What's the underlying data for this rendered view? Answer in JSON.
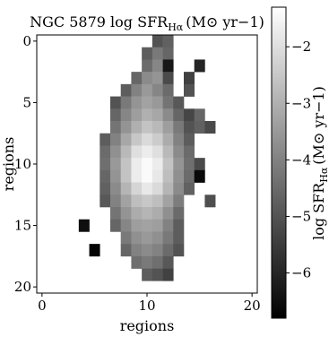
{
  "chart_data": {
    "type": "heatmap",
    "title": "NGC 5879 log SFR",
    "title_subscript": "Hα",
    "title_unit": "(M⊙ yr−1)",
    "xlabel": "regions",
    "ylabel": "regions",
    "colorbar_label": "log SFR",
    "colorbar_subscript": "Hα",
    "colorbar_unit": "(M⊙ yr−1)",
    "xlim": [
      -0.5,
      20.5
    ],
    "ylim": [
      20.5,
      -0.5
    ],
    "x_ticks": [
      0,
      10,
      20
    ],
    "y_ticks": [
      0,
      5,
      10,
      15,
      20
    ],
    "x_tick_labels": [
      "0",
      "10",
      "20"
    ],
    "y_tick_labels": [
      "0",
      "5",
      "10",
      "15",
      "20"
    ],
    "colorbar_range": [
      -6.8,
      -1.3
    ],
    "colorbar_ticks": [
      -2,
      -3,
      -4,
      -5,
      -6
    ],
    "colorbar_tick_labels": [
      "−2",
      "−3",
      "−4",
      "−5",
      "−6"
    ],
    "colormap": "gray",
    "grid": false,
    "rows": [
      {
        "y": 0,
        "x0": 11,
        "values": [
          -5.0,
          -4.7
        ]
      },
      {
        "y": 1,
        "x0": 10,
        "values": [
          -4.8,
          -4.2,
          -4.6
        ]
      },
      {
        "y": 2,
        "x0": 10,
        "values": [
          -4.5,
          -3.9,
          -6.3
        ]
      },
      {
        "y": 2,
        "x0": 15,
        "values": [
          -6.0
        ]
      },
      {
        "y": 3,
        "x0": 9,
        "values": [
          -4.6,
          -3.8,
          -3.6,
          -5.2
        ]
      },
      {
        "y": 3,
        "x0": 14,
        "values": [
          -5.4
        ]
      },
      {
        "y": 4,
        "x0": 8,
        "values": [
          -4.8,
          -4.0,
          -3.5,
          -3.9,
          -4.5
        ]
      },
      {
        "y": 4,
        "x0": 14,
        "values": [
          -5.0
        ]
      },
      {
        "y": 5,
        "x0": 7,
        "values": [
          -5.0,
          -4.2,
          -3.6,
          -3.3,
          -3.5,
          -4.3,
          -4.9
        ]
      },
      {
        "y": 6,
        "x0": 7,
        "values": [
          -4.6,
          -3.9,
          -3.4,
          -3.0,
          -3.2,
          -3.8,
          -4.6
        ]
      },
      {
        "y": 6,
        "x0": 14,
        "values": [
          -5.3,
          -4.6
        ]
      },
      {
        "y": 7,
        "x0": 7,
        "values": [
          -4.3,
          -3.6,
          -3.0,
          -2.6,
          -2.8,
          -3.4,
          -4.2,
          -5.0
        ]
      },
      {
        "y": 7,
        "x0": 15,
        "values": [
          -4.7,
          -5.2
        ]
      },
      {
        "y": 8,
        "x0": 6,
        "values": [
          -4.8,
          -4.0,
          -3.2,
          -2.5,
          -2.1,
          -2.4,
          -3.1,
          -4.0,
          -4.8
        ]
      },
      {
        "y": 9,
        "x0": 6,
        "values": [
          -4.5,
          -3.7,
          -2.8,
          -2.0,
          -1.7,
          -2.0,
          -2.8,
          -3.8,
          -4.5
        ]
      },
      {
        "y": 10,
        "x0": 6,
        "values": [
          -4.4,
          -3.5,
          -2.6,
          -1.7,
          -1.4,
          -1.7,
          -2.6,
          -3.6,
          -4.4
        ]
      },
      {
        "y": 10,
        "x0": 15,
        "values": [
          -5.2
        ]
      },
      {
        "y": 11,
        "x0": 6,
        "values": [
          -4.6,
          -3.6,
          -2.6,
          -1.7,
          -1.4,
          -1.8,
          -2.7,
          -3.7,
          -4.5
        ]
      },
      {
        "y": 11,
        "x0": 15,
        "values": [
          -6.6
        ]
      },
      {
        "y": 12,
        "x0": 6,
        "values": [
          -4.7,
          -3.8,
          -2.9,
          -2.2,
          -1.8,
          -2.1,
          -2.9,
          -3.8,
          -4.7
        ]
      },
      {
        "y": 13,
        "x0": 6,
        "values": [
          -4.9,
          -4.0,
          -3.3,
          -2.7,
          -2.5,
          -2.7,
          -3.3,
          -4.1
        ]
      },
      {
        "y": 13,
        "x0": 16,
        "values": [
          -5.1
        ]
      },
      {
        "y": 14,
        "x0": 7,
        "values": [
          -4.3,
          -3.6,
          -3.1,
          -2.9,
          -3.1,
          -3.7,
          -4.5
        ]
      },
      {
        "y": 15,
        "x0": 4,
        "values": [
          -6.5
        ]
      },
      {
        "y": 15,
        "x0": 7,
        "values": [
          -4.6,
          -3.9,
          -3.4,
          -3.3,
          -3.4,
          -4.0,
          -4.8
        ]
      },
      {
        "y": 16,
        "x0": 8,
        "values": [
          -4.2,
          -3.7,
          -3.5,
          -3.7,
          -4.2,
          -4.8
        ]
      },
      {
        "y": 17,
        "x0": 5,
        "values": [
          -6.7
        ]
      },
      {
        "y": 17,
        "x0": 8,
        "values": [
          -4.6,
          -4.0,
          -3.8,
          -4.0,
          -4.5,
          -5.0
        ]
      },
      {
        "y": 18,
        "x0": 9,
        "values": [
          -4.4,
          -4.2,
          -4.4,
          -4.9
        ]
      },
      {
        "y": 19,
        "x0": 10,
        "values": [
          -4.8,
          -5.0,
          -5.4
        ]
      }
    ]
  }
}
